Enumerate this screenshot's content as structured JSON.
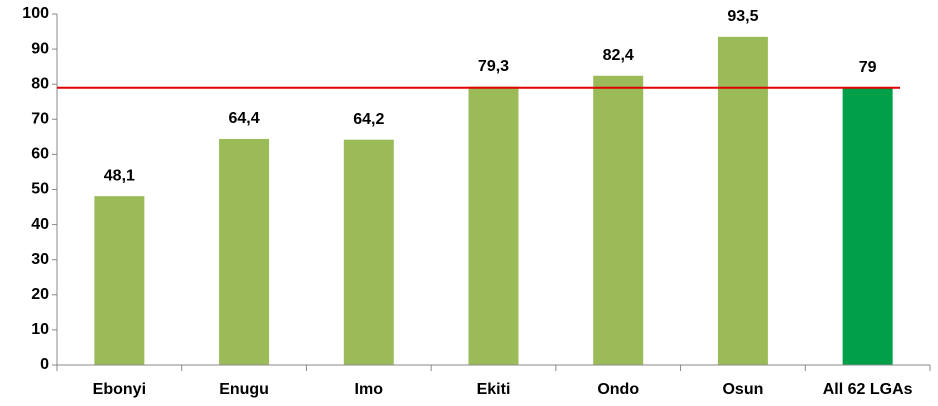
{
  "chart_data": {
    "type": "bar",
    "categories": [
      "Ebonyi",
      "Enugu",
      "Imo",
      "Ekiti",
      "Ondo",
      "Osun",
      "All 62 LGAs"
    ],
    "values": [
      48.1,
      64.4,
      64.2,
      79.3,
      82.4,
      93.5,
      79
    ],
    "value_labels": [
      "48,1",
      "64,4",
      "64,2",
      "79,3",
      "82,4",
      "93,5",
      "79"
    ],
    "colors": [
      "#9bbb59",
      "#9bbb59",
      "#9bbb59",
      "#9bbb59",
      "#9bbb59",
      "#9bbb59",
      "#00a04a"
    ],
    "reference_line": {
      "value": 79,
      "color": "#e00000"
    },
    "ylim": [
      0,
      100
    ],
    "yticks": [
      0,
      10,
      20,
      30,
      40,
      50,
      60,
      70,
      80,
      90,
      100
    ],
    "grid": false
  }
}
